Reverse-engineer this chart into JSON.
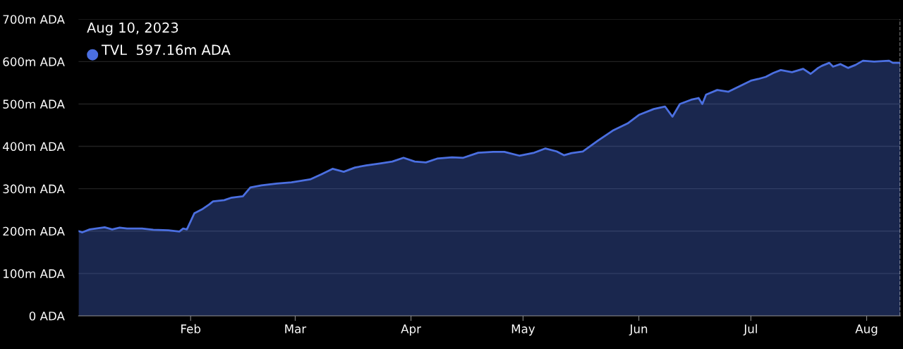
{
  "chart_data": {
    "type": "area",
    "grid": "y",
    "tick_labels": true,
    "xlim": [
      "2023-01-02",
      "2023-08-10"
    ],
    "xticks": [
      {
        "value": "2023-02-01",
        "label": "Feb"
      },
      {
        "value": "2023-03-01",
        "label": "Mar"
      },
      {
        "value": "2023-04-01",
        "label": "Apr"
      },
      {
        "value": "2023-05-01",
        "label": "May"
      },
      {
        "value": "2023-06-01",
        "label": "Jun"
      },
      {
        "value": "2023-07-01",
        "label": "Jul"
      },
      {
        "value": "2023-08-01",
        "label": "Aug"
      }
    ],
    "ylim": [
      0,
      700
    ],
    "yticks": [
      {
        "value": 0,
        "label": "0 ADA"
      },
      {
        "value": 100,
        "label": "100m ADA"
      },
      {
        "value": 200,
        "label": "200m ADA"
      },
      {
        "value": 300,
        "label": "300m ADA"
      },
      {
        "value": 400,
        "label": "400m ADA"
      },
      {
        "value": 500,
        "label": "500m ADA"
      },
      {
        "value": 600,
        "label": "600m ADA"
      },
      {
        "value": 700,
        "label": "700m ADA"
      }
    ],
    "ref_lines": [
      {
        "axis": "x",
        "value": "2023-08-10",
        "color": "#cccccc",
        "line_style": "dashed"
      }
    ],
    "annotations": [
      "Aug 10, 2023",
      "TVL  597.16m ADA"
    ],
    "series": [
      {
        "color": "#4b6fe0",
        "x": [
          "2023-01-02",
          "2023-01-03",
          "2023-01-05",
          "2023-01-09",
          "2023-01-11",
          "2023-01-13",
          "2023-01-15",
          "2023-01-19",
          "2023-01-22",
          "2023-01-26",
          "2023-01-29",
          "2023-01-30",
          "2023-01-31",
          "2023-02-02",
          "2023-02-04",
          "2023-02-06",
          "2023-02-07",
          "2023-02-10",
          "2023-02-12",
          "2023-02-15",
          "2023-02-17",
          "2023-02-20",
          "2023-02-24",
          "2023-02-28",
          "2023-03-05",
          "2023-03-08",
          "2023-03-11",
          "2023-03-14",
          "2023-03-17",
          "2023-03-20",
          "2023-03-24",
          "2023-03-27",
          "2023-03-30",
          "2023-04-02",
          "2023-04-05",
          "2023-04-08",
          "2023-04-12",
          "2023-04-15",
          "2023-04-19",
          "2023-04-23",
          "2023-04-26",
          "2023-04-30",
          "2023-05-04",
          "2023-05-07",
          "2023-05-10",
          "2023-05-12",
          "2023-05-14",
          "2023-05-17",
          "2023-05-21",
          "2023-05-25",
          "2023-05-29",
          "2023-06-01",
          "2023-06-05",
          "2023-06-08",
          "2023-06-10",
          "2023-06-12",
          "2023-06-15",
          "2023-06-17",
          "2023-06-18",
          "2023-06-19",
          "2023-06-22",
          "2023-06-25",
          "2023-06-28",
          "2023-07-01",
          "2023-07-03",
          "2023-07-05",
          "2023-07-07",
          "2023-07-09",
          "2023-07-12",
          "2023-07-15",
          "2023-07-17",
          "2023-07-19",
          "2023-07-20",
          "2023-07-22",
          "2023-07-23",
          "2023-07-25",
          "2023-07-27",
          "2023-07-29",
          "2023-07-31",
          "2023-08-03",
          "2023-08-07",
          "2023-08-08",
          "2023-08-10"
        ],
        "values": [
          200,
          197,
          204,
          209,
          204,
          208,
          206,
          206,
          203,
          202,
          199,
          206,
          204,
          242,
          251,
          263,
          270,
          273,
          279,
          282,
          303,
          308,
          312,
          315,
          322,
          334,
          347,
          340,
          350,
          355,
          360,
          364,
          373,
          364,
          362,
          371,
          374,
          373,
          385,
          387,
          387,
          378,
          385,
          395,
          388,
          379,
          384,
          388,
          413,
          437,
          454,
          474,
          488,
          494,
          470,
          500,
          510,
          514,
          500,
          522,
          533,
          529,
          542,
          555,
          559,
          564,
          573,
          580,
          575,
          583,
          571,
          585,
          590,
          597,
          588,
          594,
          585,
          592,
          602,
          600,
          602,
          597,
          597
        ]
      }
    ]
  }
}
